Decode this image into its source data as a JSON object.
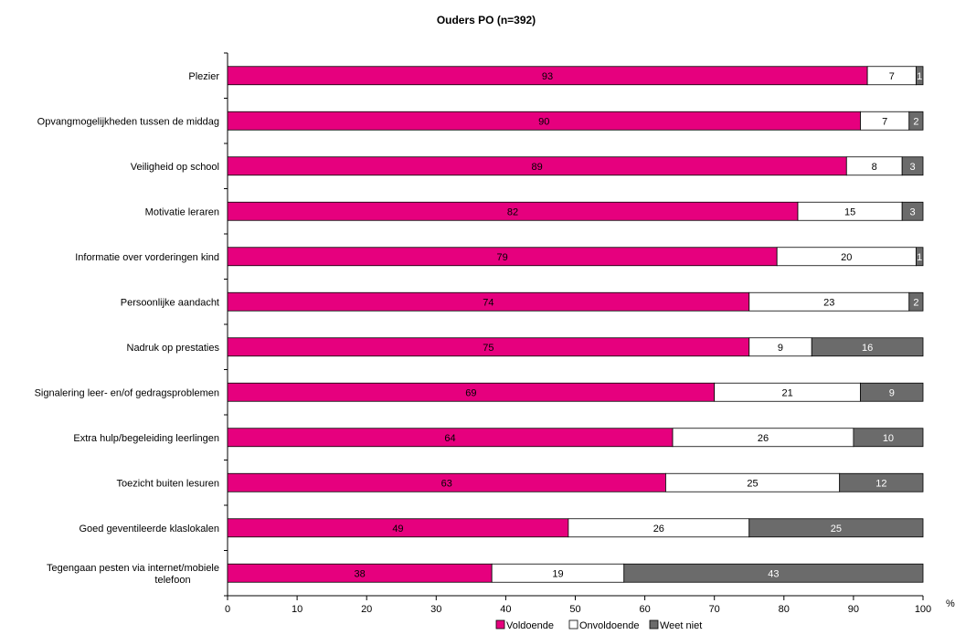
{
  "chart_data": {
    "type": "bar",
    "orientation": "horizontal",
    "stacked": true,
    "title": "Ouders PO (n=392)",
    "xlabel": "",
    "ylabel": "",
    "unit_label": "%",
    "xlim": [
      0,
      100
    ],
    "x_ticks": [
      "0",
      "10",
      "20",
      "30",
      "40",
      "50",
      "60",
      "70",
      "80",
      "90",
      "100"
    ],
    "categories": [
      "Plezier",
      "Opvangmogelijkheden tussen de middag",
      "Veiligheid op school",
      "Motivatie leraren",
      "Informatie over vorderingen kind",
      "Persoonlijke aandacht",
      "Nadruk op prestaties",
      "Signalering leer- en/of gedragsproblemen",
      "Extra hulp/begeleiding leerlingen",
      "Toezicht buiten lesuren",
      "Goed geventileerde klaslokalen",
      "Tegengaan pesten via internet/mobiele telefoon"
    ],
    "category_lines": [
      [
        "Plezier"
      ],
      [
        "Opvangmogelijkheden tussen de middag"
      ],
      [
        "Veiligheid op school"
      ],
      [
        "Motivatie leraren"
      ],
      [
        "Informatie over vorderingen kind"
      ],
      [
        "Persoonlijke aandacht"
      ],
      [
        "Nadruk op prestaties"
      ],
      [
        "Signalering leer- en/of gedragsproblemen"
      ],
      [
        "Extra hulp/begeleiding leerlingen"
      ],
      [
        "Toezicht buiten lesuren"
      ],
      [
        "Goed geventileerde klaslokalen"
      ],
      [
        "Tegengaan pesten via internet/mobiele",
        "telefoon"
      ]
    ],
    "series": [
      {
        "name": "Voldoende",
        "color": "#e6007e",
        "label_color": "#000000",
        "values": [
          93,
          90,
          89,
          82,
          79,
          74,
          75,
          69,
          64,
          63,
          49,
          38
        ],
        "widths": [
          92,
          91,
          89,
          82,
          79,
          75,
          75,
          70,
          64,
          63,
          49,
          38
        ]
      },
      {
        "name": "Onvoldoende",
        "color": "#ffffff",
        "label_color": "#000000",
        "values": [
          7,
          7,
          8,
          15,
          20,
          23,
          9,
          21,
          26,
          25,
          26,
          19
        ],
        "widths": [
          7,
          7,
          8,
          15,
          20,
          23,
          9,
          21,
          26,
          25,
          26,
          19
        ]
      },
      {
        "name": "Weet niet",
        "color": "#6b6b6b",
        "label_color": "#ffffff",
        "values": [
          1,
          2,
          3,
          3,
          1,
          2,
          16,
          9,
          10,
          12,
          25,
          43
        ],
        "widths": [
          1,
          2,
          3,
          3,
          1,
          2,
          16,
          9,
          10,
          12,
          25,
          43
        ]
      }
    ],
    "grid": false,
    "legend_position": "bottom"
  }
}
